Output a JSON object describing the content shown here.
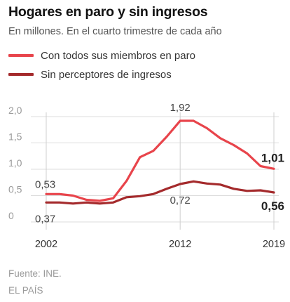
{
  "header": {
    "title": "Hogares en paro y sin ingresos",
    "subtitle": "En millones. En el cuarto trimestre de cada año"
  },
  "legend": [
    {
      "label": "Con todos sus miembros en paro",
      "color": "#e8444b"
    },
    {
      "label": "Sin perceptores de ingresos",
      "color": "#a42a2c"
    }
  ],
  "chart_data": {
    "type": "line",
    "x": [
      2002,
      2003,
      2004,
      2005,
      2006,
      2007,
      2008,
      2009,
      2010,
      2011,
      2012,
      2013,
      2014,
      2015,
      2016,
      2017,
      2018,
      2019
    ],
    "series": [
      {
        "name": "Con todos sus miembros en paro",
        "color": "#e8444b",
        "values": [
          0.53,
          0.53,
          0.5,
          0.42,
          0.4,
          0.45,
          0.78,
          1.23,
          1.35,
          1.62,
          1.92,
          1.92,
          1.78,
          1.59,
          1.46,
          1.3,
          1.06,
          1.01
        ]
      },
      {
        "name": "Sin perceptores de ingresos",
        "color": "#a42a2c",
        "values": [
          0.37,
          0.37,
          0.35,
          0.37,
          0.35,
          0.37,
          0.47,
          0.49,
          0.53,
          0.63,
          0.72,
          0.77,
          0.73,
          0.71,
          0.63,
          0.59,
          0.6,
          0.56
        ]
      }
    ],
    "ylim": [
      0,
      2.0
    ],
    "y_ticks": [
      "0",
      "0,5",
      "1,0",
      "1,5",
      "2,0"
    ],
    "y_tick_values": [
      0,
      0.5,
      1.0,
      1.5,
      2.0
    ],
    "x_ticks": [
      "2002",
      "2012",
      "2019"
    ],
    "x_tick_values": [
      2002,
      2012,
      2019
    ],
    "annotations": [
      {
        "text": "0,53",
        "year": 2002,
        "value": 0.53,
        "series": 0
      },
      {
        "text": "0,37",
        "year": 2002,
        "value": 0.37,
        "series": 1
      },
      {
        "text": "1,92",
        "year": 2012,
        "value": 1.92,
        "series": 0
      },
      {
        "text": "0,72",
        "year": 2012,
        "value": 0.72,
        "series": 1
      },
      {
        "text": "1,01",
        "year": 2019,
        "value": 1.01,
        "series": 0,
        "bold": true
      },
      {
        "text": "0,56",
        "year": 2019,
        "value": 0.56,
        "series": 1,
        "bold": true
      }
    ],
    "grid": true
  },
  "footer": {
    "source": "Fuente: INE.",
    "brand": "EL PAÍS"
  }
}
